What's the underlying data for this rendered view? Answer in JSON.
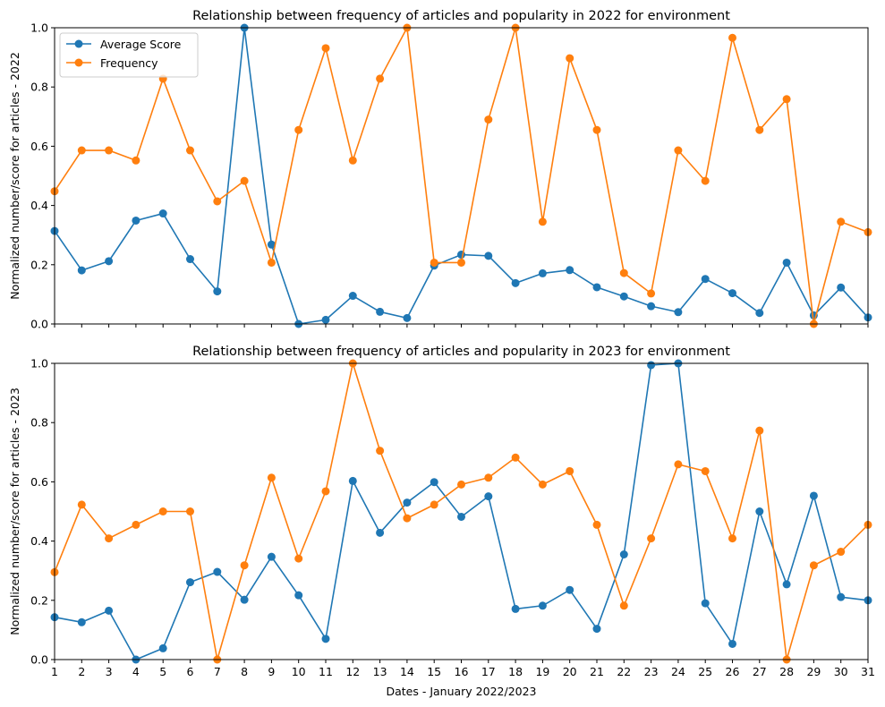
{
  "chart_data": [
    {
      "type": "line",
      "title": "Relationship between frequency of articles and popularity in 2022 for environment",
      "xlabel": "",
      "ylabel": "Normalized number/score for articles - 2022",
      "xlim": [
        1,
        31
      ],
      "ylim": [
        0,
        1
      ],
      "x": [
        1,
        2,
        3,
        4,
        5,
        6,
        7,
        8,
        9,
        10,
        11,
        12,
        13,
        14,
        15,
        16,
        17,
        18,
        19,
        20,
        21,
        22,
        23,
        24,
        25,
        26,
        27,
        28,
        29,
        30,
        31
      ],
      "x_tick_labels_shown": false,
      "y_ticks": [
        "0.0",
        "0.2",
        "0.4",
        "0.6",
        "0.8",
        "1.0"
      ],
      "grid": false,
      "legend": "upper-left",
      "series": [
        {
          "name": "Average Score",
          "color": "#1f77b4",
          "marker": "circle",
          "values": [
            0.314,
            0.181,
            0.212,
            0.349,
            0.373,
            0.219,
            0.11,
            1.0,
            0.268,
            0.0,
            0.014,
            0.095,
            0.041,
            0.02,
            0.197,
            0.234,
            0.23,
            0.138,
            0.171,
            0.182,
            0.124,
            0.093,
            0.06,
            0.04,
            0.152,
            0.104,
            0.037,
            0.207,
            0.029,
            0.123,
            0.022
          ]
        },
        {
          "name": "Frequency",
          "color": "#ff7f0e",
          "marker": "circle",
          "values": [
            0.448,
            0.586,
            0.586,
            0.552,
            0.828,
            0.586,
            0.414,
            0.483,
            0.207,
            0.655,
            0.931,
            0.552,
            0.828,
            1.0,
            0.207,
            0.207,
            0.69,
            1.0,
            0.345,
            0.897,
            0.655,
            0.172,
            0.103,
            0.586,
            0.483,
            0.966,
            0.655,
            0.759,
            0.0,
            0.345,
            0.31
          ]
        }
      ]
    },
    {
      "type": "line",
      "title": "Relationship between frequency of articles and popularity in 2023 for environment",
      "xlabel": "Dates - January 2022/2023",
      "ylabel": "Normalized number/score for articles - 2023",
      "xlim": [
        1,
        31
      ],
      "ylim": [
        0,
        1
      ],
      "x": [
        1,
        2,
        3,
        4,
        5,
        6,
        7,
        8,
        9,
        10,
        11,
        12,
        13,
        14,
        15,
        16,
        17,
        18,
        19,
        20,
        21,
        22,
        23,
        24,
        25,
        26,
        27,
        28,
        29,
        30,
        31
      ],
      "x_tick_labels_shown": true,
      "y_ticks": [
        "0.0",
        "0.2",
        "0.4",
        "0.6",
        "0.8",
        "1.0"
      ],
      "grid": false,
      "series": [
        {
          "name": "Average Score",
          "color": "#1f77b4",
          "marker": "circle",
          "values": [
            0.143,
            0.126,
            0.165,
            0.0,
            0.038,
            0.261,
            0.296,
            0.202,
            0.347,
            0.217,
            0.07,
            0.603,
            0.428,
            0.53,
            0.599,
            0.482,
            0.551,
            0.171,
            0.182,
            0.235,
            0.104,
            0.355,
            0.994,
            1.0,
            0.19,
            0.053,
            0.5,
            0.254,
            0.553,
            0.211,
            0.2
          ]
        },
        {
          "name": "Frequency",
          "color": "#ff7f0e",
          "marker": "circle",
          "values": [
            0.295,
            0.523,
            0.409,
            0.455,
            0.5,
            0.5,
            0.0,
            0.318,
            0.614,
            0.341,
            0.568,
            1.0,
            0.705,
            0.477,
            0.523,
            0.591,
            0.614,
            0.682,
            0.591,
            0.636,
            0.455,
            0.182,
            0.409,
            0.659,
            0.636,
            0.409,
            0.773,
            0.0,
            0.318,
            0.364,
            0.455
          ]
        }
      ]
    }
  ]
}
